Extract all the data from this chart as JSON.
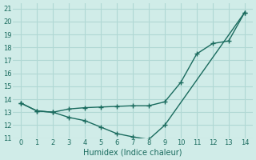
{
  "line1_x": [
    0,
    1,
    2,
    3,
    4,
    5,
    6,
    7,
    8,
    9,
    10,
    11,
    12,
    13,
    14
  ],
  "line1_y": [
    13.7,
    13.1,
    13.0,
    13.25,
    13.35,
    13.4,
    13.45,
    13.5,
    13.5,
    13.8,
    15.3,
    17.5,
    18.3,
    18.5,
    20.7
  ],
  "line2_x": [
    0,
    1,
    2,
    3,
    4,
    5,
    6,
    7,
    8,
    9,
    14
  ],
  "line2_y": [
    13.7,
    13.1,
    13.0,
    12.6,
    12.35,
    11.85,
    11.35,
    11.1,
    10.9,
    12.0,
    20.7
  ],
  "line_color": "#1a6b5e",
  "bg_color": "#d0ece8",
  "grid_color": "#b0d8d4",
  "xlabel": "Humidex (Indice chaleur)",
  "xlim": [
    -0.5,
    14.5
  ],
  "ylim": [
    11,
    21.4
  ],
  "yticks": [
    11,
    12,
    13,
    14,
    15,
    16,
    17,
    18,
    19,
    20,
    21
  ],
  "xticks": [
    0,
    1,
    2,
    3,
    4,
    5,
    6,
    7,
    8,
    9,
    10,
    11,
    12,
    13,
    14
  ]
}
